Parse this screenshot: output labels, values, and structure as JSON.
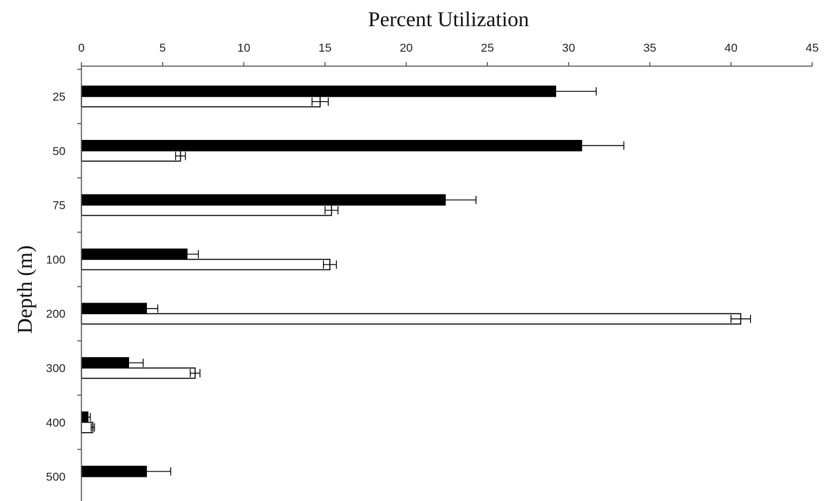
{
  "chart_data": {
    "type": "bar",
    "orientation": "horizontal",
    "title": "",
    "xlabel": "Percent Utilization",
    "ylabel": "Depth (m)",
    "xlim": [
      0,
      45
    ],
    "x_ticks": [
      0,
      5,
      10,
      15,
      20,
      25,
      30,
      35,
      40,
      45
    ],
    "x_axis_position": "top",
    "grid": false,
    "categories": [
      "25",
      "50",
      "75",
      "100",
      "200",
      "300",
      "400",
      "500"
    ],
    "series": [
      {
        "fill": "#000000",
        "values": [
          29.2,
          30.8,
          22.4,
          6.5,
          4.0,
          2.9,
          0.4,
          4.0
        ],
        "errors": [
          2.5,
          2.6,
          1.9,
          0.7,
          0.7,
          0.9,
          0.15,
          1.5
        ]
      },
      {
        "fill": "#ffffff",
        "values": [
          14.7,
          6.1,
          15.4,
          15.3,
          40.6,
          7.0,
          0.7,
          0
        ],
        "errors": [
          0.5,
          0.3,
          0.4,
          0.4,
          0.6,
          0.3,
          0.1,
          0
        ]
      }
    ]
  }
}
